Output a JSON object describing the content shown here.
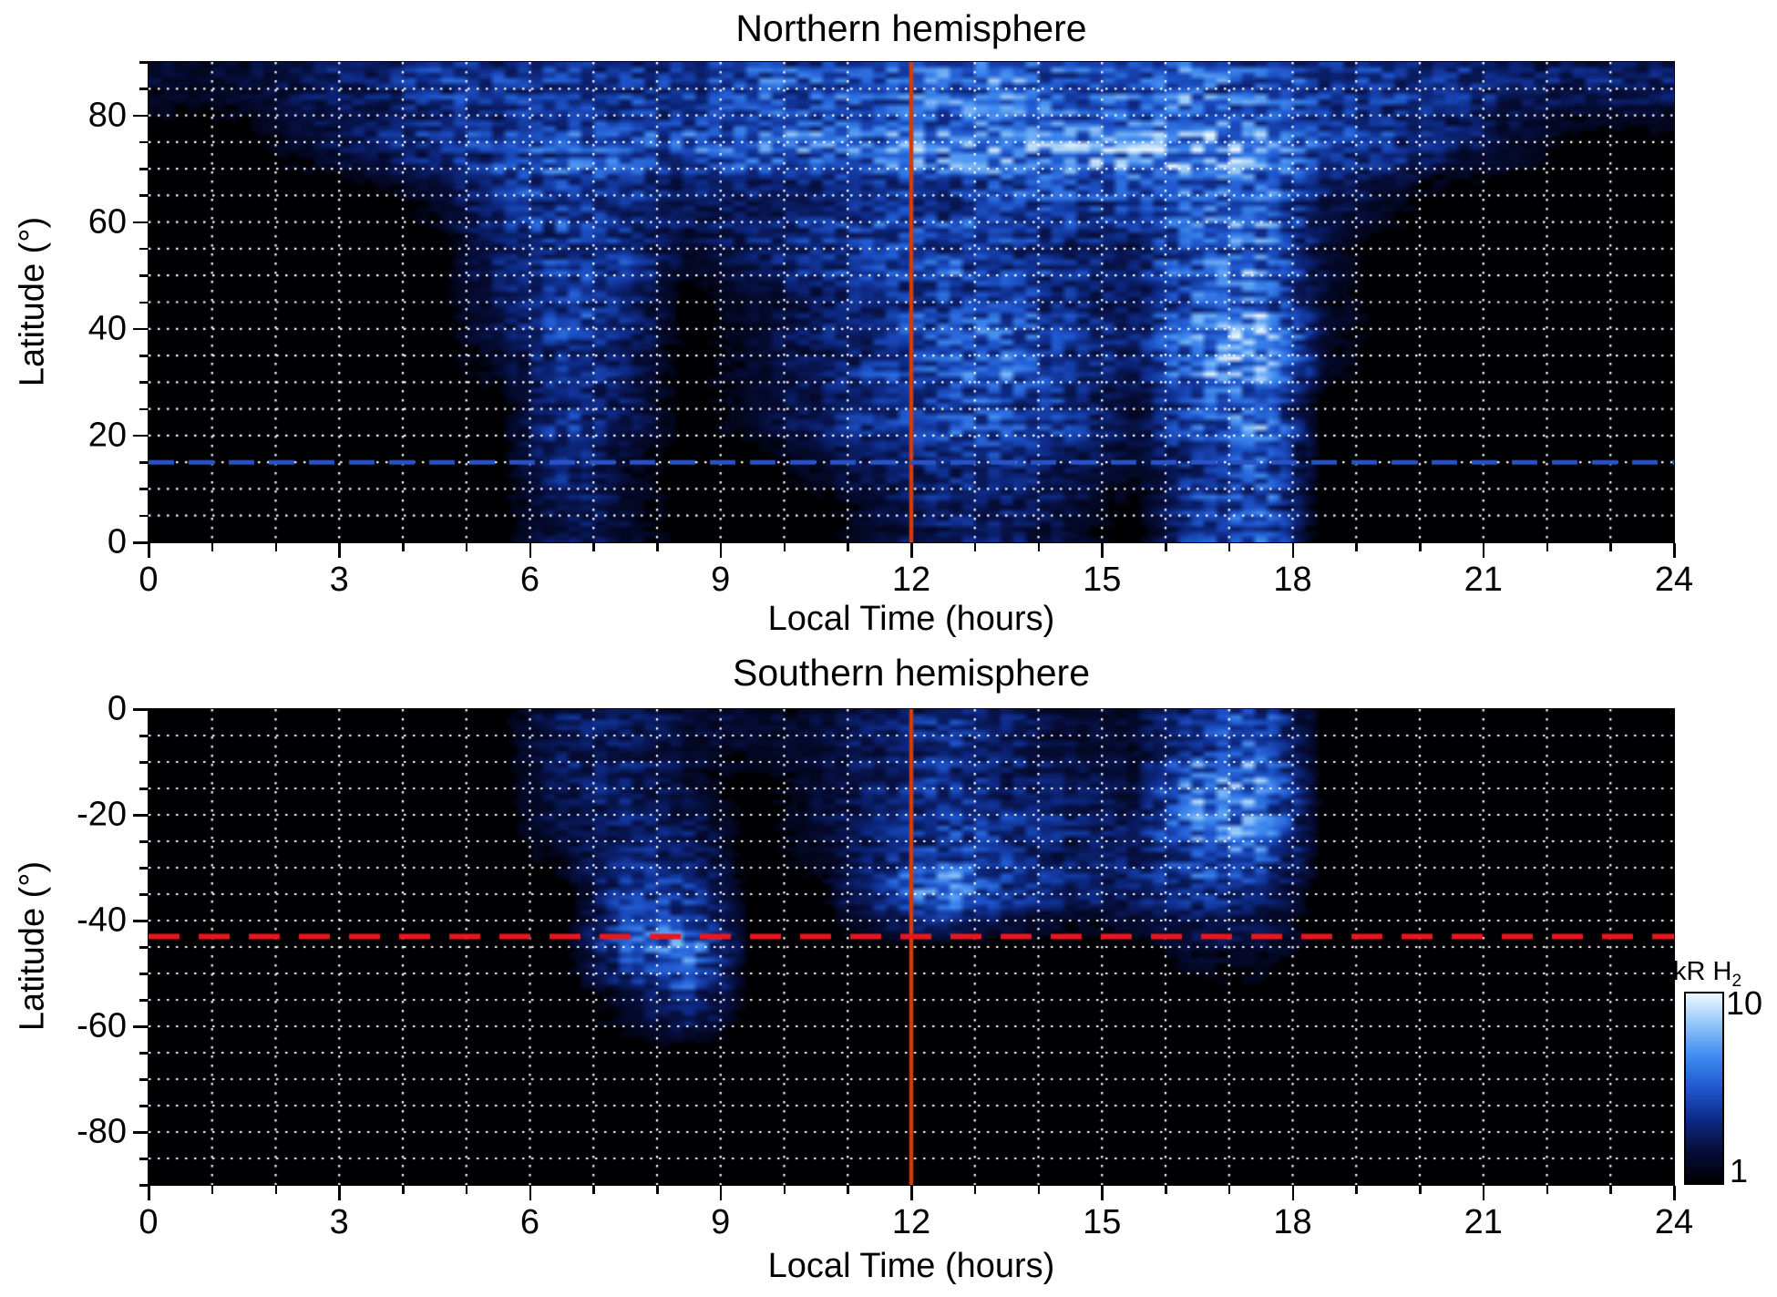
{
  "figure": {
    "background": "#ffffff",
    "panel_background": "#000000",
    "grid_color": "#ffffff",
    "text_color": "#000000",
    "panels": [
      {
        "id": "north",
        "title": "Northern hemisphere",
        "xlabel": "Local Time (hours)",
        "ylabel": "Latitude (°)",
        "xlim": [
          0,
          24
        ],
        "ylim": [
          0,
          90
        ],
        "xticks": [
          0,
          3,
          6,
          9,
          12,
          15,
          18,
          21,
          24
        ],
        "yticks": [
          0,
          20,
          40,
          60,
          80
        ],
        "x_minor_step": 1,
        "y_minor_step": 5,
        "annotation_lines": [
          {
            "orientation": "vertical",
            "value": 12,
            "color": "#d23c08",
            "style": "solid",
            "width": 4.5
          },
          {
            "orientation": "horizontal",
            "value": 15,
            "color": "#2853c6",
            "style": "dashed",
            "dash": [
              28,
              16
            ],
            "width": 5
          }
        ]
      },
      {
        "id": "south",
        "title": "Southern hemisphere",
        "xlabel": "Local Time (hours)",
        "ylabel": "Latitude (°)",
        "xlim": [
          0,
          24
        ],
        "ylim": [
          -90,
          0
        ],
        "xticks": [
          0,
          3,
          6,
          9,
          12,
          15,
          18,
          21,
          24
        ],
        "yticks": [
          0,
          -20,
          -40,
          -60,
          -80
        ],
        "x_minor_step": 1,
        "y_minor_step": 5,
        "annotation_lines": [
          {
            "orientation": "vertical",
            "value": 12,
            "color": "#d23c08",
            "style": "solid",
            "width": 4.5
          },
          {
            "orientation": "horizontal",
            "value": -43,
            "color": "#e8161e",
            "style": "dashed",
            "dash": [
              34,
              21
            ],
            "width": 6
          }
        ]
      }
    ],
    "colorbar": {
      "label": "kR H",
      "label_sub": "2",
      "max_label": "10",
      "min_label": "1",
      "min_value": 1,
      "max_value": 10,
      "stops": [
        "#000002",
        "#060d38",
        "#0e2a86",
        "#1f57cf",
        "#3f8af0",
        "#8ec4f8",
        "#eef8ff"
      ]
    }
  },
  "chart_data": [
    {
      "type": "heatmap",
      "panel": "north",
      "title": "Northern hemisphere",
      "xlabel": "Local Time (hours)",
      "ylabel": "Latitude (°)",
      "units": "kR H2",
      "value_scale": "approx brightness 0 (black, <1 kR) to 10 (white, 10 kR)",
      "xlim": [
        0,
        24
      ],
      "ylim": [
        0,
        90
      ],
      "x_bin_centers": [
        0.5,
        1.5,
        2.5,
        3.5,
        4.5,
        5.5,
        6.5,
        7.5,
        8.5,
        9.5,
        10.5,
        11.5,
        12.5,
        13.5,
        14.5,
        15.5,
        16.5,
        17.5,
        18.5,
        19.5,
        20.5,
        21.5,
        22.5,
        23.5
      ],
      "y_bin_centers": [
        85,
        75,
        65,
        55,
        45,
        35,
        25,
        15,
        5
      ],
      "values": [
        [
          1,
          1,
          2,
          2,
          3,
          3,
          3,
          3,
          3,
          4,
          4,
          4,
          5,
          5,
          4,
          4,
          5,
          4,
          3,
          3,
          3,
          2,
          2,
          2
        ],
        [
          0,
          0,
          1,
          2,
          3,
          3,
          4,
          4,
          4,
          5,
          5,
          5,
          6,
          6,
          6,
          7,
          7,
          6,
          4,
          3,
          2,
          1,
          0,
          0
        ],
        [
          0,
          0,
          0,
          0,
          1,
          3,
          4,
          3,
          2,
          2,
          2,
          3,
          3,
          4,
          4,
          4,
          5,
          5,
          2,
          1,
          0,
          0,
          0,
          0
        ],
        [
          0,
          0,
          0,
          0,
          0,
          2,
          3,
          3,
          1,
          2,
          3,
          4,
          4,
          3,
          2,
          2,
          5,
          5,
          1,
          0,
          0,
          0,
          0,
          0
        ],
        [
          0,
          0,
          0,
          0,
          0,
          2,
          4,
          3,
          0,
          1,
          2,
          3,
          4,
          4,
          3,
          2,
          5,
          6,
          1,
          0,
          0,
          0,
          0,
          0
        ],
        [
          0,
          0,
          0,
          0,
          0,
          1,
          3,
          2,
          0,
          1,
          2,
          3,
          4,
          5,
          3,
          2,
          6,
          8,
          1,
          0,
          0,
          0,
          0,
          0
        ],
        [
          0,
          0,
          0,
          0,
          0,
          0,
          3,
          2,
          0,
          1,
          2,
          3,
          4,
          4,
          3,
          1,
          4,
          5,
          0,
          0,
          0,
          0,
          0,
          0
        ],
        [
          0,
          0,
          0,
          0,
          0,
          0,
          3,
          1,
          0,
          0,
          1,
          2,
          3,
          3,
          2,
          1,
          3,
          5,
          0,
          0,
          0,
          0,
          0,
          0
        ],
        [
          0,
          0,
          0,
          0,
          0,
          0,
          2,
          1,
          0,
          0,
          0,
          1,
          2,
          2,
          1,
          0,
          3,
          4,
          0,
          0,
          0,
          0,
          0,
          0
        ]
      ],
      "reference_lines": [
        {
          "orientation": "vertical",
          "local_time": 12
        },
        {
          "orientation": "horizontal",
          "latitude": 15
        }
      ]
    },
    {
      "type": "heatmap",
      "panel": "south",
      "title": "Southern hemisphere",
      "xlabel": "Local Time (hours)",
      "ylabel": "Latitude (°)",
      "units": "kR H2",
      "value_scale": "approx brightness 0 (black, <1 kR) to 10 (white, 10 kR)",
      "xlim": [
        0,
        24
      ],
      "ylim": [
        -90,
        0
      ],
      "x_bin_centers": [
        0.5,
        1.5,
        2.5,
        3.5,
        4.5,
        5.5,
        6.5,
        7.5,
        8.5,
        9.5,
        10.5,
        11.5,
        12.5,
        13.5,
        14.5,
        15.5,
        16.5,
        17.5,
        18.5,
        19.5,
        20.5,
        21.5,
        22.5,
        23.5
      ],
      "y_bin_centers": [
        -5,
        -15,
        -25,
        -35,
        -45,
        -55,
        -65,
        -75,
        -85
      ],
      "values": [
        [
          0,
          0,
          0,
          0,
          0,
          0,
          2,
          2,
          1,
          1,
          1,
          2,
          3,
          2,
          1,
          1,
          3,
          4,
          0,
          0,
          0,
          0,
          0,
          0
        ],
        [
          0,
          0,
          0,
          0,
          0,
          0,
          2,
          2,
          1,
          0,
          1,
          2,
          3,
          2,
          2,
          1,
          6,
          6,
          0,
          0,
          0,
          0,
          0,
          0
        ],
        [
          0,
          0,
          0,
          0,
          0,
          0,
          1,
          2,
          2,
          0,
          1,
          2,
          3,
          3,
          2,
          2,
          5,
          5,
          0,
          0,
          0,
          0,
          0,
          0
        ],
        [
          0,
          0,
          0,
          0,
          0,
          0,
          0,
          3,
          3,
          0,
          0,
          3,
          6,
          3,
          2,
          2,
          3,
          2,
          0,
          0,
          0,
          0,
          0,
          0
        ],
        [
          0,
          0,
          0,
          0,
          0,
          0,
          0,
          4,
          5,
          0,
          0,
          0,
          0,
          0,
          0,
          0,
          1,
          1,
          0,
          0,
          0,
          0,
          0,
          0
        ],
        [
          0,
          0,
          0,
          0,
          0,
          0,
          0,
          1,
          3,
          0,
          0,
          0,
          0,
          0,
          0,
          0,
          0,
          0,
          0,
          0,
          0,
          0,
          0,
          0
        ],
        [
          0,
          0,
          0,
          0,
          0,
          0,
          0,
          0,
          0,
          0,
          0,
          0,
          0,
          0,
          0,
          0,
          0,
          0,
          0,
          0,
          0,
          0,
          0,
          0
        ],
        [
          0,
          0,
          0,
          0,
          0,
          0,
          0,
          0,
          0,
          0,
          0,
          0,
          0,
          0,
          0,
          0,
          0,
          0,
          0,
          0,
          0,
          0,
          0,
          0
        ],
        [
          0,
          0,
          0,
          0,
          0,
          0,
          0,
          0,
          0,
          0,
          0,
          0,
          0,
          0,
          0,
          0,
          0,
          0,
          0,
          0,
          0,
          0,
          0,
          0
        ]
      ],
      "reference_lines": [
        {
          "orientation": "vertical",
          "local_time": 12
        },
        {
          "orientation": "horizontal",
          "latitude": -43
        }
      ]
    }
  ]
}
